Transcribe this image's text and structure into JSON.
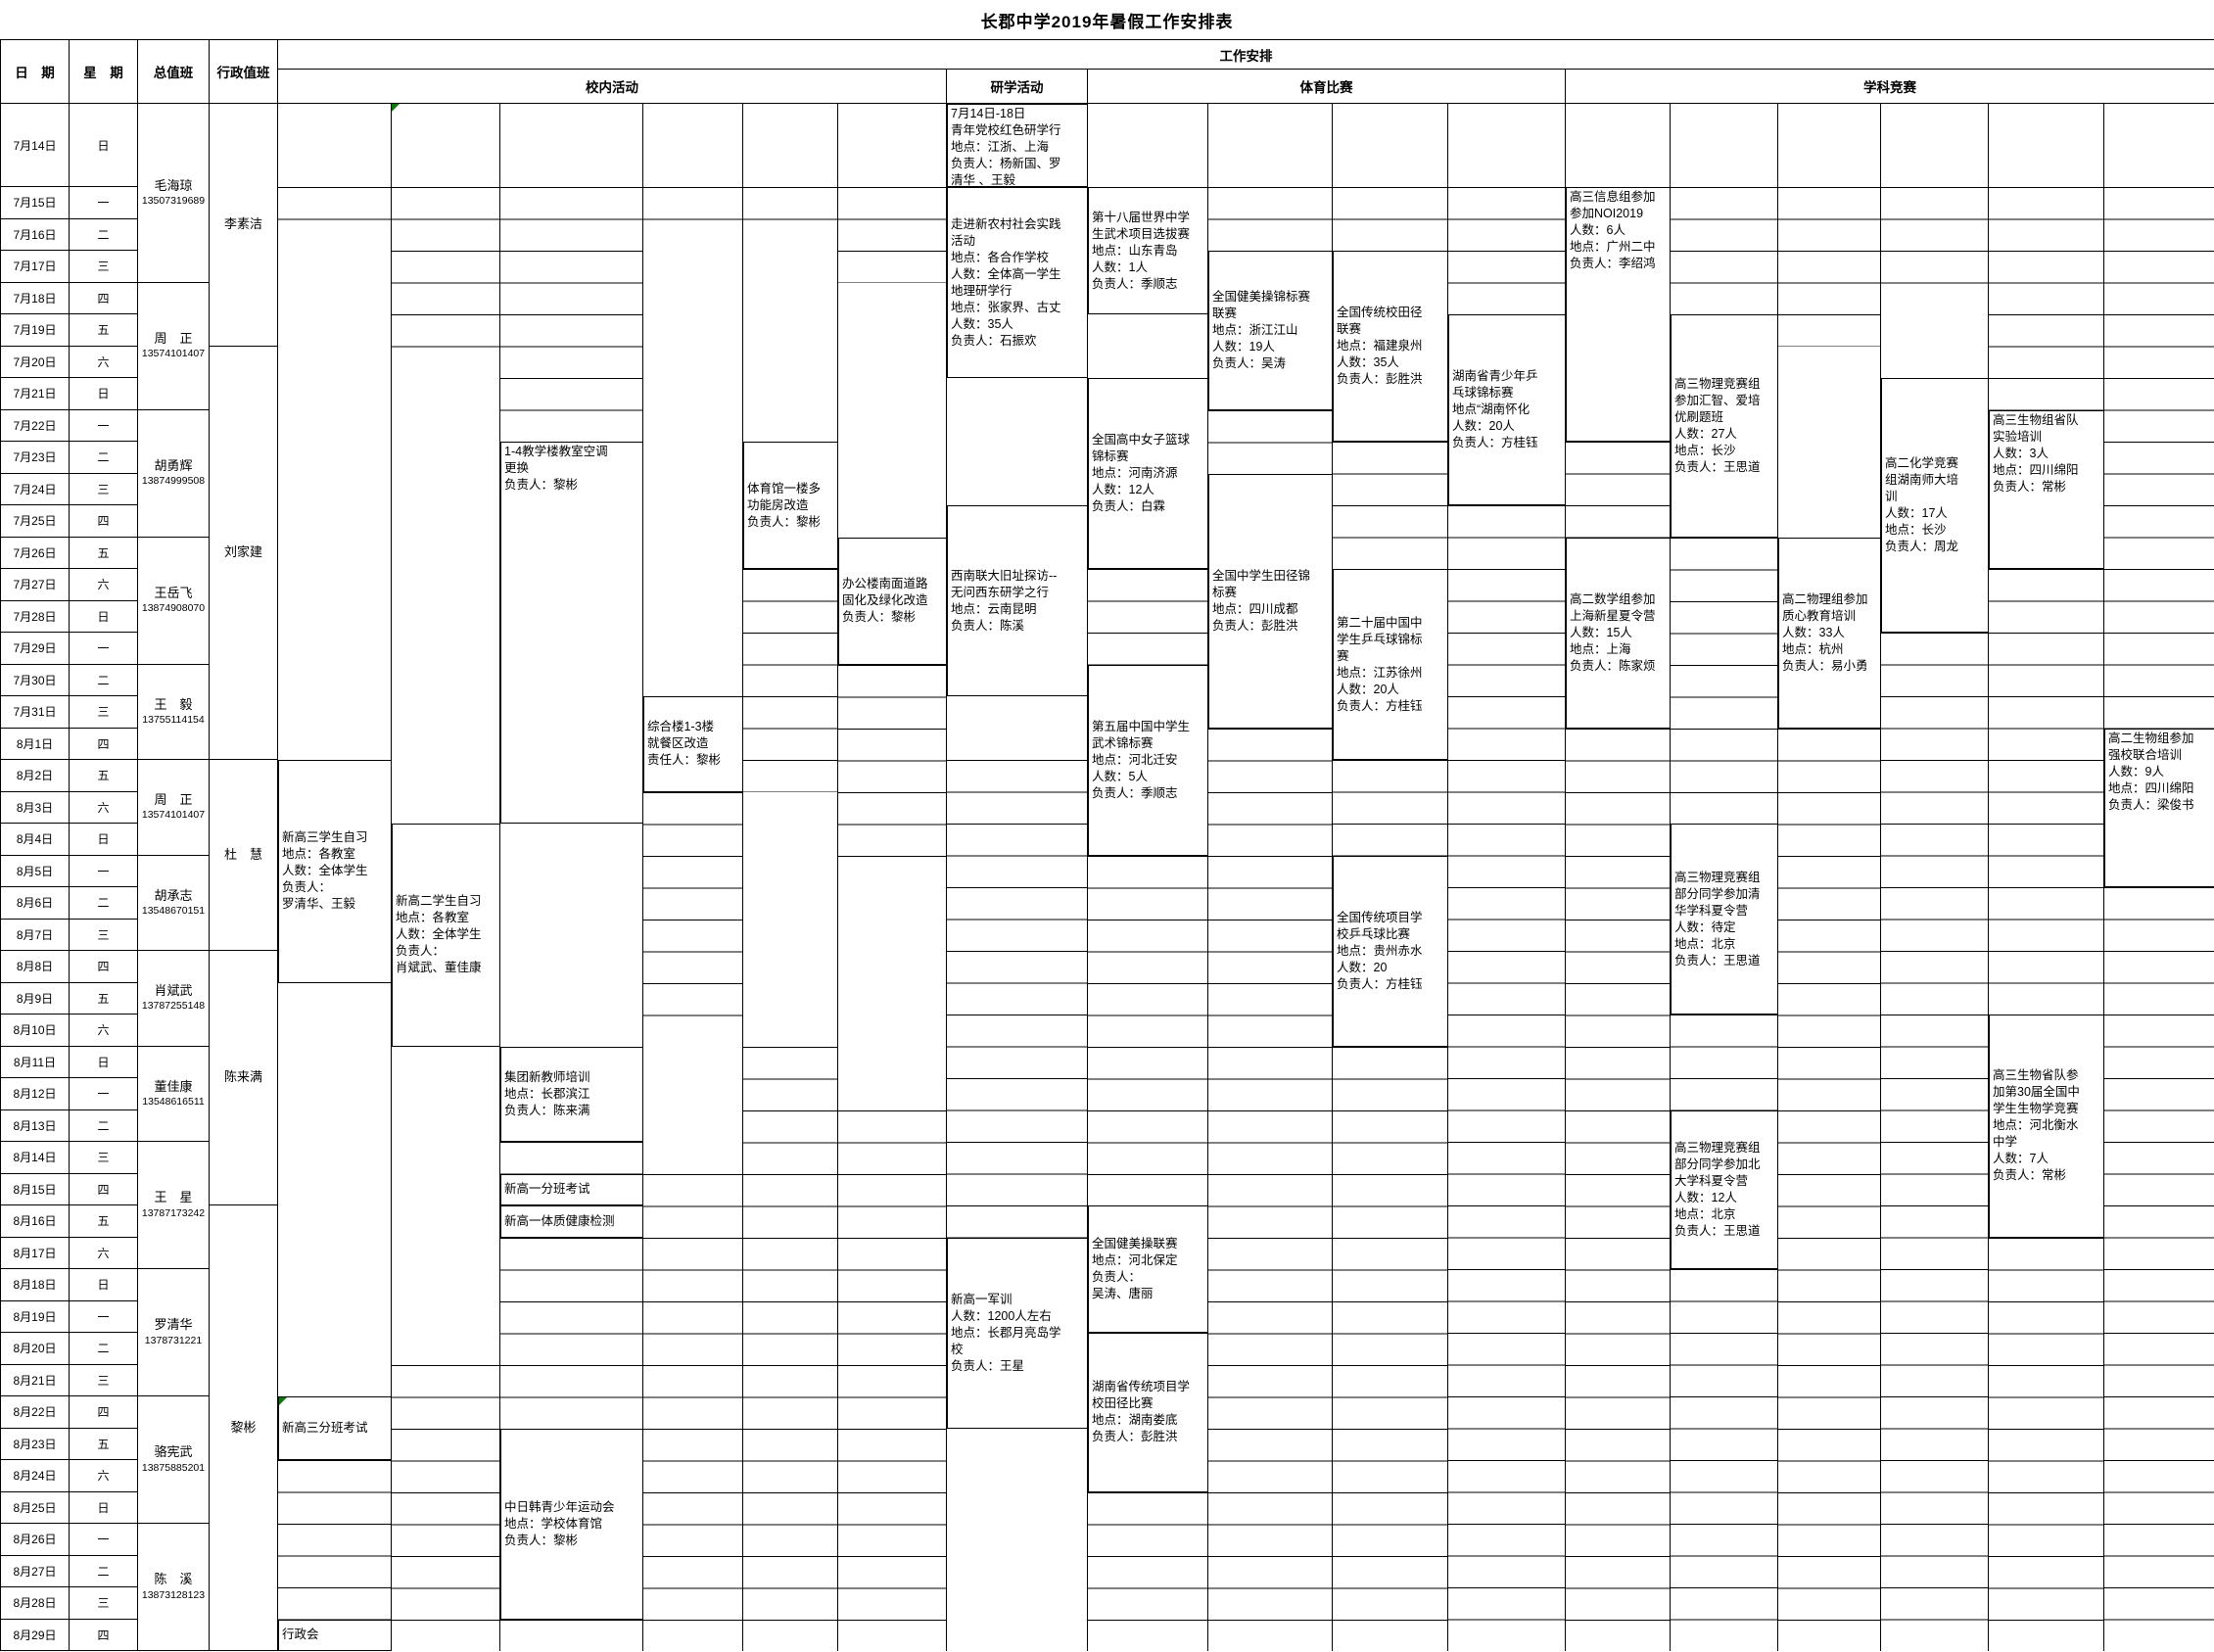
{
  "title": "长郡中学2019年暑假工作安排表",
  "colors": {
    "border": "#000000",
    "green_corner": "#0a7a0a",
    "background": "#ffffff",
    "text": "#000000"
  },
  "header": {
    "left": [
      "日　期",
      "星　期",
      "总值班",
      "行政值班"
    ],
    "work": "工作安排",
    "sections": [
      {
        "label": "校内活动",
        "start": 1,
        "end": 6
      },
      {
        "label": "研学活动",
        "start": 7,
        "end": 7
      },
      {
        "label": "体育比赛",
        "start": 8,
        "end": 11
      },
      {
        "label": "学科竞赛",
        "start": 12,
        "end": 17
      }
    ]
  },
  "days": [
    {
      "date": "7月14日",
      "week": "日"
    },
    {
      "date": "7月15日",
      "week": "一"
    },
    {
      "date": "7月16日",
      "week": "二"
    },
    {
      "date": "7月17日",
      "week": "三"
    },
    {
      "date": "7月18日",
      "week": "四"
    },
    {
      "date": "7月19日",
      "week": "五"
    },
    {
      "date": "7月20日",
      "week": "六"
    },
    {
      "date": "7月21日",
      "week": "日"
    },
    {
      "date": "7月22日",
      "week": "一"
    },
    {
      "date": "7月23日",
      "week": "二"
    },
    {
      "date": "7月24日",
      "week": "三"
    },
    {
      "date": "7月25日",
      "week": "四"
    },
    {
      "date": "7月26日",
      "week": "五"
    },
    {
      "date": "7月27日",
      "week": "六"
    },
    {
      "date": "7月28日",
      "week": "日"
    },
    {
      "date": "7月29日",
      "week": "一"
    },
    {
      "date": "7月30日",
      "week": "二"
    },
    {
      "date": "7月31日",
      "week": "三"
    },
    {
      "date": "8月1日",
      "week": "四"
    },
    {
      "date": "8月2日",
      "week": "五"
    },
    {
      "date": "8月3日",
      "week": "六"
    },
    {
      "date": "8月4日",
      "week": "日"
    },
    {
      "date": "8月5日",
      "week": "一"
    },
    {
      "date": "8月6日",
      "week": "二"
    },
    {
      "date": "8月7日",
      "week": "三"
    },
    {
      "date": "8月8日",
      "week": "四"
    },
    {
      "date": "8月9日",
      "week": "五"
    },
    {
      "date": "8月10日",
      "week": "六"
    },
    {
      "date": "8月11日",
      "week": "日"
    },
    {
      "date": "8月12日",
      "week": "一"
    },
    {
      "date": "8月13日",
      "week": "二"
    },
    {
      "date": "8月14日",
      "week": "三"
    },
    {
      "date": "8月15日",
      "week": "四"
    },
    {
      "date": "8月16日",
      "week": "五"
    },
    {
      "date": "8月17日",
      "week": "六"
    },
    {
      "date": "8月18日",
      "week": "日"
    },
    {
      "date": "8月19日",
      "week": "一"
    },
    {
      "date": "8月20日",
      "week": "二"
    },
    {
      "date": "8月21日",
      "week": "三"
    },
    {
      "date": "8月22日",
      "week": "四"
    },
    {
      "date": "8月23日",
      "week": "五"
    },
    {
      "date": "8月24日",
      "week": "六"
    },
    {
      "date": "8月25日",
      "week": "日"
    },
    {
      "date": "8月26日",
      "week": "一"
    },
    {
      "date": "8月27日",
      "week": "二"
    },
    {
      "date": "8月28日",
      "week": "三"
    },
    {
      "date": "8月29日",
      "week": "四"
    }
  ],
  "duty_general": [
    {
      "name": "毛海琼",
      "phone": "13507319689",
      "from": 0,
      "to": 3
    },
    {
      "name": "周　正",
      "phone": "13574101407",
      "from": 4,
      "to": 7
    },
    {
      "name": "胡勇辉",
      "phone": "13874999508",
      "from": 8,
      "to": 11
    },
    {
      "name": "王岳飞",
      "phone": "13874908070",
      "from": 12,
      "to": 15
    },
    {
      "name": "王　毅",
      "phone": "13755114154",
      "from": 16,
      "to": 18
    },
    {
      "name": "周　正",
      "phone": "13574101407",
      "from": 19,
      "to": 21
    },
    {
      "name": "胡承志",
      "phone": "13548670151",
      "from": 22,
      "to": 24
    },
    {
      "name": "肖斌武",
      "phone": "13787255148",
      "from": 25,
      "to": 27
    },
    {
      "name": "董佳康",
      "phone": "13548616511",
      "from": 28,
      "to": 30
    },
    {
      "name": "王　星",
      "phone": "13787173242",
      "from": 31,
      "to": 34
    },
    {
      "name": "罗清华",
      "phone": "1378731221",
      "from": 35,
      "to": 38
    },
    {
      "name": "骆宪武",
      "phone": "13875885201",
      "from": 39,
      "to": 42
    },
    {
      "name": "陈　溪",
      "phone": "13873128123",
      "from": 43,
      "to": 46
    }
  ],
  "duty_admin": [
    {
      "name": "李素洁",
      "from": 0,
      "to": 5
    },
    {
      "name": "刘家建",
      "from": 6,
      "to": 18
    },
    {
      "name": "杜　慧",
      "from": 19,
      "to": 24
    },
    {
      "name": "陈来满",
      "from": 25,
      "to": 32
    },
    {
      "name": "黎彬",
      "from": 33,
      "to": 46
    }
  ],
  "events": [
    {
      "col": 2,
      "from": 0,
      "to": 0,
      "align": "center",
      "noborder": true,
      "green": true,
      "lines": []
    },
    {
      "col": 3,
      "from": 9,
      "to": 20,
      "align": "top",
      "lines": [
        "1-4教学楼教室空调",
        "更换",
        "负责人：黎彬"
      ]
    },
    {
      "col": 4,
      "from": 17,
      "to": 19,
      "align": "center",
      "lines": [
        "综合楼1-3楼",
        "就餐区改造",
        "责任人：黎彬"
      ]
    },
    {
      "col": 5,
      "from": 9,
      "to": 12,
      "align": "center",
      "lines": [
        "体育馆一楼多",
        "功能房改造",
        "负责人：黎彬"
      ]
    },
    {
      "col": 6,
      "from": 12,
      "to": 15,
      "align": "center",
      "lines": [
        "办公楼南面道路",
        "固化及绿化改造",
        "负责人：黎彬"
      ]
    },
    {
      "col": 1,
      "from": 19,
      "to": 25,
      "align": "center",
      "lines": [
        "新高三学生自习",
        "地点：各教室",
        "人数：全体学生",
        "负责人：",
        "罗清华、王毅"
      ]
    },
    {
      "col": 2,
      "from": 21,
      "to": 27,
      "align": "center",
      "lines": [
        "新高二学生自习",
        "地点：各教室",
        "人数：全体学生",
        "负责人：",
        "肖斌武、董佳康"
      ]
    },
    {
      "col": 3,
      "from": 28,
      "to": 30,
      "align": "center",
      "lines": [
        "集团新教师培训",
        "地点：长郡滨江",
        "负责人：陈来满"
      ]
    },
    {
      "col": 3,
      "from": 32,
      "to": 32,
      "align": "center",
      "lines": [
        "新高一分班考试"
      ]
    },
    {
      "col": 3,
      "from": 33,
      "to": 33,
      "align": "center",
      "lines": [
        "新高一体质健康检测"
      ]
    },
    {
      "col": 1,
      "from": 39,
      "to": 40,
      "align": "center",
      "green": true,
      "lines": [
        "新高三分班考试"
      ]
    },
    {
      "col": 3,
      "from": 40,
      "to": 45,
      "align": "center",
      "lines": [
        "中日韩青少年运动会",
        "地点：学校体育馆",
        "负责人：黎彬"
      ]
    },
    {
      "col": 1,
      "from": 46,
      "to": 46,
      "align": "center",
      "lines": [
        "行政会"
      ]
    },
    {
      "col": 7,
      "from": 0,
      "to": 0,
      "align": "top",
      "lines": [
        "7月14日-18日",
        "青年党校红色研学行",
        "地点：江浙、上海",
        "负责人：杨新国、罗",
        "清华 、王毅"
      ]
    },
    {
      "col": 7,
      "from": 1,
      "to": 6,
      "align": "center",
      "lines": [
        "走进新农村社会实践",
        "活动",
        "地点：各合作学校",
        "人数：全体高一学生",
        "地理研学行",
        "地点：张家界、古丈",
        "人数：35人",
        "负责人：石振欢"
      ]
    },
    {
      "col": 7,
      "from": 11,
      "to": 16,
      "align": "center",
      "lines": [
        "西南联大旧址探访--",
        "无问西东研学之行",
        "地点：云南昆明",
        "负责人：陈溪"
      ]
    },
    {
      "col": 7,
      "from": 34,
      "to": 39,
      "align": "center",
      "lines": [
        "新高一军训",
        "人数：1200人左右",
        "地点：长郡月亮岛学",
        "校",
        "负责人：王星"
      ]
    },
    {
      "col": 8,
      "from": 1,
      "to": 4,
      "align": "center",
      "lines": [
        "第十八届世界中学",
        "生武术项目选拔赛",
        "地点：山东青岛",
        "人数：1人",
        "负责人：季顺志"
      ]
    },
    {
      "col": 9,
      "from": 3,
      "to": 7,
      "align": "center",
      "lines": [
        "全国健美操锦标赛",
        "联赛",
        "地点：浙江江山",
        "人数：19人",
        "负责人：吴涛"
      ]
    },
    {
      "col": 10,
      "from": 3,
      "to": 8,
      "align": "center",
      "lines": [
        "全国传统校田径",
        "联赛",
        "地点：福建泉州",
        "人数：35人",
        "负责人：彭胜洪"
      ]
    },
    {
      "col": 11,
      "from": 5,
      "to": 10,
      "align": "center",
      "lines": [
        "湖南省青少年乒",
        "乓球锦标赛",
        "地点“湖南怀化",
        "人数：20人",
        "负责人：方桂钰"
      ]
    },
    {
      "col": 8,
      "from": 7,
      "to": 12,
      "align": "center",
      "lines": [
        "全国高中女子篮球",
        "锦标赛",
        "地点：河南济源",
        "人数：12人",
        "负责人：白霖"
      ]
    },
    {
      "col": 9,
      "from": 10,
      "to": 17,
      "align": "center",
      "lines": [
        "全国中学生田径锦",
        "标赛",
        "地点：四川成都",
        "负责人：彭胜洪"
      ]
    },
    {
      "col": 8,
      "from": 16,
      "to": 21,
      "align": "center",
      "lines": [
        "第五届中国中学生",
        "武术锦标赛",
        "地点：河北迁安",
        "人数：5人",
        "负责人：季顺志"
      ]
    },
    {
      "col": 10,
      "from": 13,
      "to": 18,
      "align": "center",
      "lines": [
        "第二十届中国中",
        "学生乒乓球锦标",
        "赛",
        "地点：江苏徐州",
        "人数：20人",
        "负责人：方桂钰"
      ]
    },
    {
      "col": 10,
      "from": 22,
      "to": 27,
      "align": "center",
      "lines": [
        "全国传统项目学",
        "校乒乓球比赛",
        "地点：贵州赤水",
        "人数：20",
        "负责人：方桂钰"
      ]
    },
    {
      "col": 8,
      "from": 33,
      "to": 36,
      "align": "center",
      "lines": [
        "全国健美操联赛",
        "地点：河北保定",
        "负责人：",
        "吴涛、唐丽"
      ]
    },
    {
      "col": 8,
      "from": 37,
      "to": 41,
      "align": "center",
      "lines": [
        "湖南省传统项目学",
        "校田径比赛",
        "地点：湖南娄底",
        "负责人：彭胜洪"
      ]
    },
    {
      "col": 12,
      "from": 1,
      "to": 8,
      "align": "top",
      "lines": [
        "高三信息组参加",
        "参加NOI2019",
        "人数：6人",
        "地点：广州二中",
        "负责人：李绍鸿"
      ]
    },
    {
      "col": 13,
      "from": 5,
      "to": 11,
      "align": "center",
      "lines": [
        "高三物理竞赛组",
        "参加汇智、爱培",
        "优刷题班",
        "人数：27人",
        "地点：长沙",
        "负责人：王思道"
      ]
    },
    {
      "col": 12,
      "from": 12,
      "to": 17,
      "align": "center",
      "lines": [
        "高二数学组参加",
        "上海新星夏令营",
        "人数：15人",
        "地点：上海",
        "负责人：陈家烦"
      ]
    },
    {
      "col": 14,
      "from": 12,
      "to": 17,
      "align": "center",
      "lines": [
        "高二物理组参加",
        "质心教育培训",
        "人数：33人",
        "地点：杭州",
        "负责人：易小勇"
      ]
    },
    {
      "col": 15,
      "from": 7,
      "to": 14,
      "align": "center",
      "lines": [
        "高二化学竞赛",
        "组湖南师大培",
        "训",
        "人数：17人",
        "地点：长沙",
        "负责人：周龙"
      ]
    },
    {
      "col": 16,
      "from": 8,
      "to": 12,
      "align": "top",
      "lines": [
        "高三生物组省队",
        "实验培训",
        "人数：3人",
        "地点：四川绵阳",
        "负责人：常彬"
      ]
    },
    {
      "col": 17,
      "from": 18,
      "to": 22,
      "align": "top",
      "lines": [
        "高二生物组参加",
        "强校联合培训",
        "人数：9人",
        "地点：四川绵阳",
        "负责人：梁俊书"
      ]
    },
    {
      "col": 13,
      "from": 21,
      "to": 26,
      "align": "center",
      "lines": [
        "高三物理竞赛组",
        "部分同学参加清",
        "华学科夏令营",
        "人数：待定",
        "地点：北京",
        "负责人：王思道"
      ]
    },
    {
      "col": 16,
      "from": 27,
      "to": 33,
      "align": "center",
      "lines": [
        "高三生物省队参",
        "加第30届全国中",
        "学生生物学竞赛",
        "地点：河北衡水",
        "中学",
        "人数：7人",
        "负责人：常彬"
      ]
    },
    {
      "col": 13,
      "from": 30,
      "to": 34,
      "align": "center",
      "lines": [
        "高三物理竞赛组",
        "部分同学参加北",
        "大学科夏令营",
        "人数：12人",
        "地点：北京",
        "负责人：王思道"
      ]
    }
  ],
  "grid_lines": [
    {
      "col": 1,
      "from": 1,
      "to": 2
    },
    {
      "col": 1,
      "from": 41,
      "to": 45
    },
    {
      "col": 2,
      "from": 1,
      "to": 6
    },
    {
      "col": 2,
      "from": 38,
      "to": 46
    },
    {
      "col": 3,
      "from": 1,
      "to": 8
    },
    {
      "col": 3,
      "from": 31,
      "to": 31
    },
    {
      "col": 3,
      "from": 34,
      "to": 39
    },
    {
      "col": 3,
      "from": 46,
      "to": 46
    },
    {
      "col": 4,
      "from": 1,
      "to": 2
    },
    {
      "col": 4,
      "from": 20,
      "to": 27
    },
    {
      "col": 4,
      "from": 32,
      "to": 46
    },
    {
      "col": 5,
      "from": 1,
      "to": 2
    },
    {
      "col": 5,
      "from": 13,
      "to": 19
    },
    {
      "col": 5,
      "from": 28,
      "to": 46
    },
    {
      "col": 6,
      "from": 1,
      "to": 3
    },
    {
      "col": 6,
      "from": 16,
      "to": 22
    },
    {
      "col": 6,
      "from": 30,
      "to": 46
    },
    {
      "col": 7,
      "from": 19,
      "to": 33
    },
    {
      "col": 8,
      "from": 13,
      "to": 15
    },
    {
      "col": 8,
      "from": 22,
      "to": 32
    },
    {
      "col": 8,
      "from": 42,
      "to": 46
    },
    {
      "col": 9,
      "from": 1,
      "to": 2
    },
    {
      "col": 9,
      "from": 8,
      "to": 9
    },
    {
      "col": 9,
      "from": 18,
      "to": 46
    },
    {
      "col": 10,
      "from": 1,
      "to": 2
    },
    {
      "col": 10,
      "from": 9,
      "to": 12
    },
    {
      "col": 10,
      "from": 19,
      "to": 21
    },
    {
      "col": 10,
      "from": 28,
      "to": 46
    },
    {
      "col": 11,
      "from": 1,
      "to": 4
    },
    {
      "col": 11,
      "from": 11,
      "to": 46
    },
    {
      "col": 12,
      "from": 9,
      "to": 11
    },
    {
      "col": 12,
      "from": 18,
      "to": 46
    },
    {
      "col": 13,
      "from": 1,
      "to": 4
    },
    {
      "col": 13,
      "from": 12,
      "to": 20
    },
    {
      "col": 13,
      "from": 27,
      "to": 29
    },
    {
      "col": 13,
      "from": 35,
      "to": 46
    },
    {
      "col": 14,
      "from": 1,
      "to": 5
    },
    {
      "col": 14,
      "from": 18,
      "to": 46
    },
    {
      "col": 15,
      "from": 1,
      "to": 4
    },
    {
      "col": 15,
      "from": 15,
      "to": 46
    },
    {
      "col": 16,
      "from": 1,
      "to": 7
    },
    {
      "col": 16,
      "from": 13,
      "to": 26
    },
    {
      "col": 16,
      "from": 34,
      "to": 46
    },
    {
      "col": 17,
      "from": 1,
      "to": 17
    },
    {
      "col": 17,
      "from": 23,
      "to": 46
    }
  ]
}
